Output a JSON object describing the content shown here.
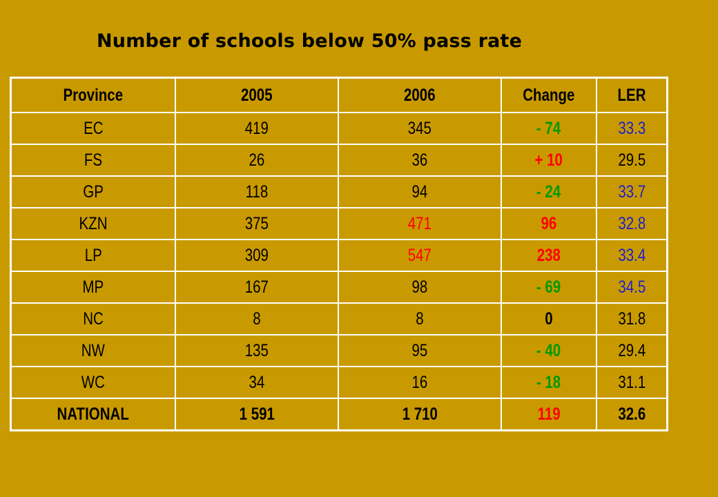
{
  "title": "Number of schools below 50% pass rate",
  "colors": {
    "background": "#c99a00",
    "grid": "#ffffff",
    "default_text": "#000000",
    "increase": "#ff0000",
    "decrease": "#009900",
    "ler_highlight": "#1f1fcc"
  },
  "table": {
    "headers": [
      "Province",
      "2005",
      "2006",
      "Change",
      "LER"
    ],
    "rows": [
      {
        "province": "EC",
        "y2005": "419",
        "y2006": "345",
        "change": "- 74",
        "ler": "33.3"
      },
      {
        "province": "FS",
        "y2005": "26",
        "y2006": "36",
        "change": "+ 10",
        "ler": "29.5"
      },
      {
        "province": "GP",
        "y2005": "118",
        "y2006": "94",
        "change": "- 24",
        "ler": "33.7"
      },
      {
        "province": "KZN",
        "y2005": "375",
        "y2006": "471",
        "change": "96",
        "ler": "32.8"
      },
      {
        "province": "LP",
        "y2005": "309",
        "y2006": "547",
        "change": "238",
        "ler": "33.4"
      },
      {
        "province": "MP",
        "y2005": "167",
        "y2006": "98",
        "change": "- 69",
        "ler": "34.5"
      },
      {
        "province": "NC",
        "y2005": "8",
        "y2006": "8",
        "change": "0",
        "ler": "31.8"
      },
      {
        "province": "NW",
        "y2005": "135",
        "y2006": "95",
        "change": "- 40",
        "ler": "29.4"
      },
      {
        "province": "WC",
        "y2005": "34",
        "y2006": "16",
        "change": "- 18",
        "ler": "31.1"
      },
      {
        "province": "NATIONAL",
        "y2005": "1 591",
        "y2006": "1 710",
        "change": "119",
        "ler": "32.6"
      }
    ]
  }
}
